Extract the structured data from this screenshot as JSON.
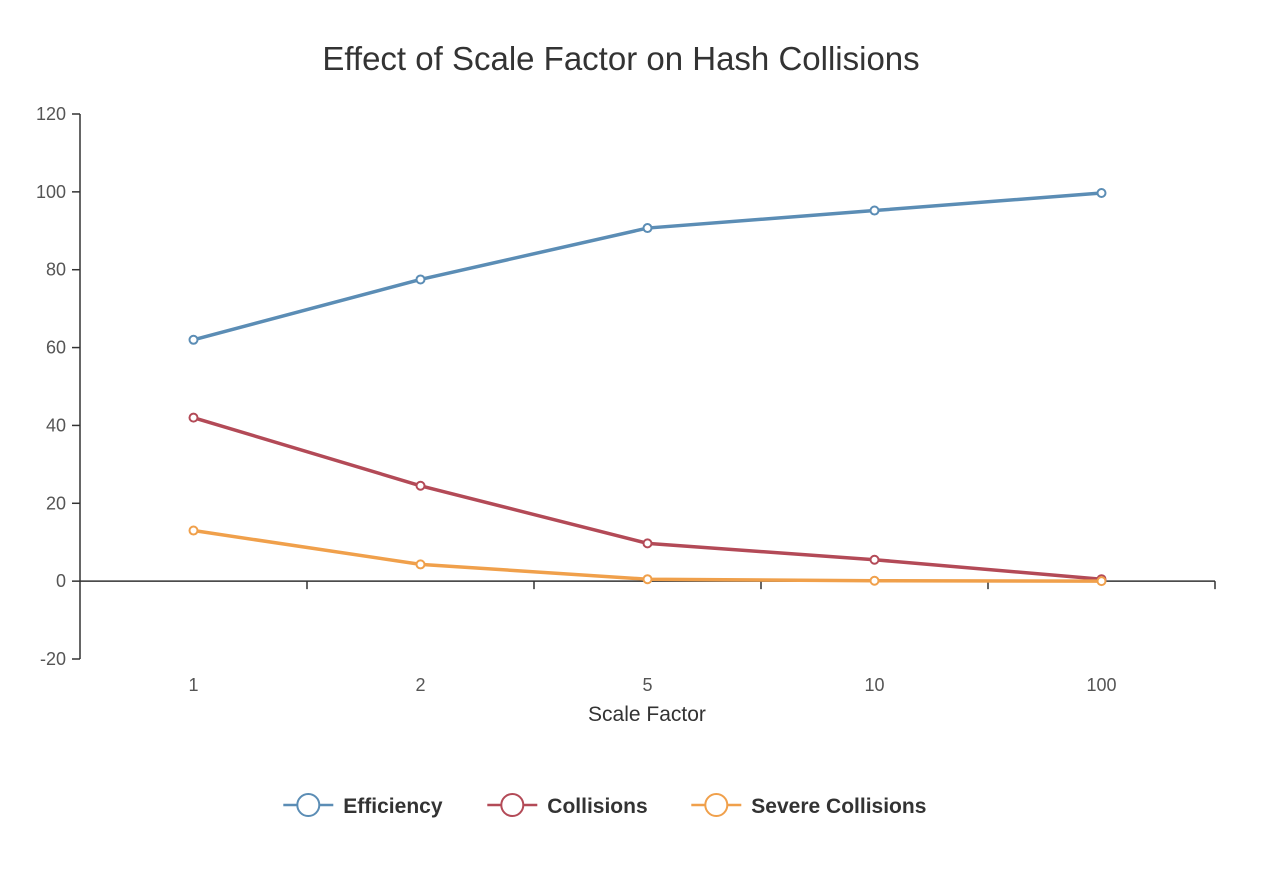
{
  "chart_data": {
    "type": "line",
    "title": "Effect of Scale Factor on Hash Collisions",
    "xlabel": "Scale Factor",
    "ylabel": "",
    "categories": [
      "1",
      "2",
      "5",
      "10",
      "100"
    ],
    "ylim": [
      -20,
      120
    ],
    "yticks": [
      -20,
      0,
      20,
      40,
      60,
      80,
      100,
      120
    ],
    "grid": false,
    "legend_position": "bottom",
    "series": [
      {
        "name": "Efficiency",
        "color": "#5b8db5",
        "values": [
          62,
          77.5,
          90.7,
          95.2,
          99.7
        ]
      },
      {
        "name": "Collisions",
        "color": "#b34a57",
        "values": [
          42,
          24.5,
          9.7,
          5.5,
          0.5
        ]
      },
      {
        "name": "Severe Collisions",
        "color": "#f0a04b",
        "values": [
          13,
          4.3,
          0.5,
          0.1,
          0
        ]
      }
    ]
  }
}
